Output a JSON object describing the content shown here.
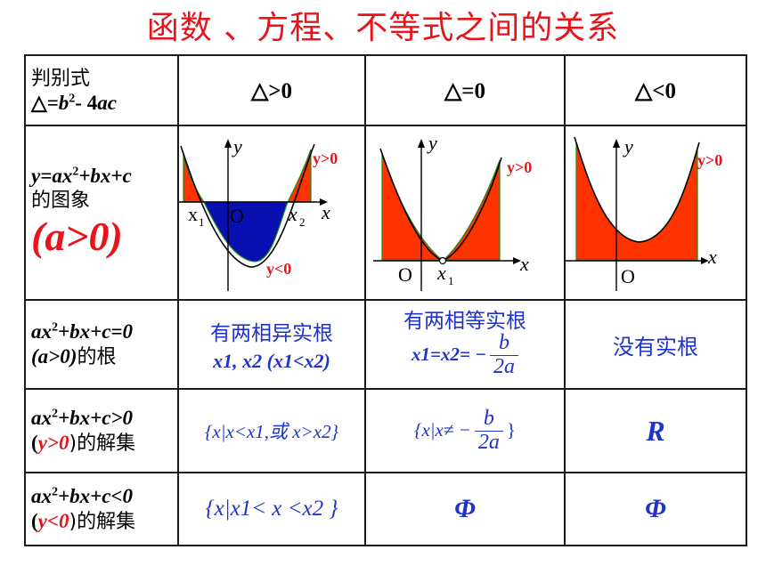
{
  "title": "函数 、方程、不等式之间的关系",
  "header": {
    "label_line1": "判别式",
    "label_delta": "△=",
    "label_b": "b",
    "label_exp": "2",
    "label_rest": "- 4",
    "label_ac": "ac",
    "col1": "△>0",
    "col2": "△=0",
    "col3": "△<0"
  },
  "graph_row": {
    "label_eq": "y=ax",
    "label_exp": "2",
    "label_tail": "+bx+c",
    "label_cn": "的图象",
    "label_cond": "(a>0)",
    "axis_y": "y",
    "axis_x": "x",
    "origin": "O",
    "x1": "x",
    "x2": "x",
    "sub1": "1",
    "sub2": "2",
    "pos": "y>0",
    "neg": "y<0"
  },
  "roots_row": {
    "label_eq": "ax",
    "label_exp": "2",
    "label_tail": "+bx+c=0",
    "label_cond": "(a>0)",
    "label_cn": "的根",
    "c1_line1": "有两相异实根",
    "c1_line2": "x1, x2 (x1<x2)",
    "c2_line1": "有两相等实根",
    "c2_lhs": "x1=x2= −",
    "c2_num": "b",
    "c2_den": "2a",
    "c3": "没有实根"
  },
  "gt_row": {
    "label_eq": "ax",
    "label_exp": "2",
    "label_tail": "+bx+c>0",
    "label_open": "(",
    "label_cond": "y>0",
    "label_close": ")的解集",
    "c1": "{x|x<x1,或 x>x2}",
    "c2_pre": "{x|x≠  −",
    "c2_num": "b",
    "c2_den": "2a",
    "c2_post": "}",
    "c3": "R"
  },
  "lt_row": {
    "label_eq": "ax",
    "label_exp": "2",
    "label_tail": "+bx+c<0",
    "label_open": "(",
    "label_cond": "y<0",
    "label_close": ")的解集",
    "c1": "{x|x1< x <x2 }",
    "c2": "Φ",
    "c3": "Φ"
  }
}
